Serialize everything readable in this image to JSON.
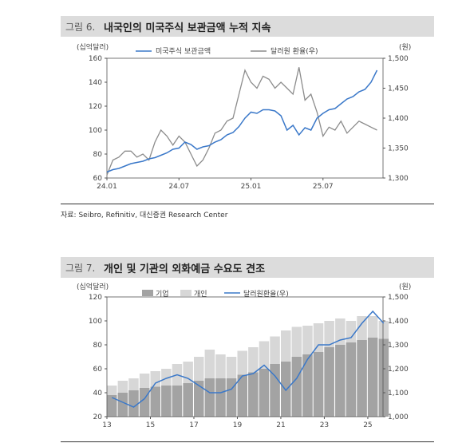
{
  "fig6": {
    "num": "그림 6.",
    "title": "내국인의 미국주식 보관금액 누적 지속",
    "source": "자료: Seibro, Refinitiv, 대신증권 Research Center"
  },
  "fig7": {
    "num": "그림 7.",
    "title": "개인 및 기관의 외화예금 수요도 견조"
  },
  "colors": {
    "blue": "#3a78c9",
    "gray": "#8c8c8c",
    "corp": "#a3a3a3",
    "indiv": "#d7d7d7"
  },
  "chart_data": [
    {
      "type": "line",
      "y_unit_left": "(십억달러)",
      "y_unit_right": "(원)",
      "ylim": [
        60,
        160
      ],
      "y2lim": [
        1300,
        1500
      ],
      "yticks": [
        60,
        80,
        100,
        120,
        140,
        160
      ],
      "y2ticks": [
        1300,
        1350,
        1400,
        1450,
        1500
      ],
      "y2tick_labels": [
        "1,300",
        "1,350",
        "1,400",
        "1,450",
        "1,500"
      ],
      "x_tick_labels": [
        "24.01",
        "24.07",
        "25.01",
        "25.07"
      ],
      "x_tick_pos": [
        0,
        6,
        12,
        18
      ],
      "xlim": [
        0,
        23
      ],
      "legend_position": "top",
      "series": [
        {
          "name": "미국주식 보관금액",
          "axis": "left",
          "color_key": "blue",
          "x": [
            0,
            0.5,
            1,
            1.5,
            2,
            2.5,
            3,
            3.5,
            4,
            4.5,
            5,
            5.5,
            6,
            6.5,
            7,
            7.5,
            8,
            8.5,
            9,
            9.5,
            10,
            10.5,
            11,
            11.5,
            12,
            12.5,
            13,
            13.5,
            14,
            14.5,
            15,
            15.5,
            16,
            16.5,
            17,
            17.5,
            18,
            18.5,
            19,
            19.5,
            20,
            20.5,
            21,
            21.5,
            22,
            22.5
          ],
          "values": [
            65,
            67,
            68,
            70,
            72,
            73,
            74,
            76,
            77,
            79,
            81,
            84,
            85,
            90,
            88,
            84,
            86,
            87,
            90,
            92,
            96,
            98,
            103,
            110,
            115,
            114,
            117,
            117,
            116,
            112,
            100,
            104,
            96,
            102,
            100,
            110,
            114,
            117,
            118,
            122,
            126,
            128,
            132,
            134,
            140,
            150
          ]
        },
        {
          "name": "달러원 환율(우)",
          "axis": "right",
          "color_key": "gray",
          "x": [
            0,
            0.5,
            1,
            1.5,
            2,
            2.5,
            3,
            3.5,
            4,
            4.5,
            5,
            5.5,
            6,
            6.5,
            7,
            7.5,
            8,
            8.5,
            9,
            9.5,
            10,
            10.5,
            11,
            11.5,
            12,
            12.5,
            13,
            13.5,
            14,
            14.5,
            15,
            15.5,
            16,
            16.5,
            17,
            17.5,
            18,
            18.5,
            19,
            19.5,
            20,
            20.5,
            21,
            21.5,
            22,
            22.5
          ],
          "values": [
            1305,
            1330,
            1335,
            1345,
            1345,
            1335,
            1340,
            1330,
            1360,
            1380,
            1370,
            1355,
            1370,
            1360,
            1340,
            1320,
            1330,
            1350,
            1375,
            1380,
            1395,
            1400,
            1440,
            1480,
            1460,
            1450,
            1470,
            1465,
            1450,
            1460,
            1450,
            1440,
            1485,
            1430,
            1440,
            1410,
            1370,
            1385,
            1380,
            1395,
            1375,
            1385,
            1395,
            1390,
            1385,
            1380
          ]
        }
      ]
    },
    {
      "type": "bar",
      "y_unit_left": "(십억달러)",
      "y_unit_right": "(원)",
      "ylim": [
        20,
        120
      ],
      "y2lim": [
        1000,
        1500
      ],
      "yticks": [
        20,
        40,
        60,
        80,
        100,
        120
      ],
      "y2ticks": [
        1000,
        1100,
        1200,
        1300,
        1400,
        1500
      ],
      "y2tick_labels": [
        "1,000",
        "1,100",
        "1,200",
        "1,300",
        "1,400",
        "1,500"
      ],
      "x_tick_labels": [
        "13",
        "15",
        "17",
        "19",
        "21",
        "23",
        "25"
      ],
      "x_tick_pos": [
        2013,
        2015,
        2017,
        2019,
        2021,
        2023,
        2025
      ],
      "xlim": [
        2013,
        2025.7
      ],
      "legend_position": "top",
      "year_x": [
        2013,
        2013.5,
        2014,
        2014.5,
        2015,
        2015.5,
        2016,
        2016.5,
        2017,
        2017.5,
        2018,
        2018.5,
        2019,
        2019.5,
        2020,
        2020.5,
        2021,
        2021.5,
        2022,
        2022.5,
        2023,
        2023.5,
        2024,
        2024.5,
        2025,
        2025.5
      ],
      "series": [
        {
          "name": "기업",
          "kind": "bar",
          "color_key": "corp",
          "values": [
            38,
            40,
            42,
            44,
            45,
            46,
            46,
            48,
            50,
            52,
            52,
            52,
            55,
            57,
            60,
            64,
            66,
            70,
            72,
            74,
            78,
            80,
            82,
            84,
            86,
            85
          ]
        },
        {
          "name": "개인",
          "kind": "bar",
          "color_key": "indiv",
          "values": [
            46,
            50,
            52,
            56,
            58,
            60,
            64,
            66,
            70,
            76,
            72,
            70,
            75,
            78,
            83,
            87,
            92,
            95,
            96,
            98,
            100,
            102,
            100,
            104,
            104,
            100
          ]
        },
        {
          "name": "달러원환율(우)",
          "kind": "line",
          "axis": "right",
          "color_key": "blue",
          "values": [
            1080,
            1060,
            1040,
            1075,
            1140,
            1160,
            1175,
            1160,
            1130,
            1100,
            1100,
            1115,
            1170,
            1180,
            1215,
            1170,
            1110,
            1160,
            1240,
            1300,
            1300,
            1320,
            1330,
            1390,
            1440,
            1390
          ]
        }
      ]
    }
  ]
}
